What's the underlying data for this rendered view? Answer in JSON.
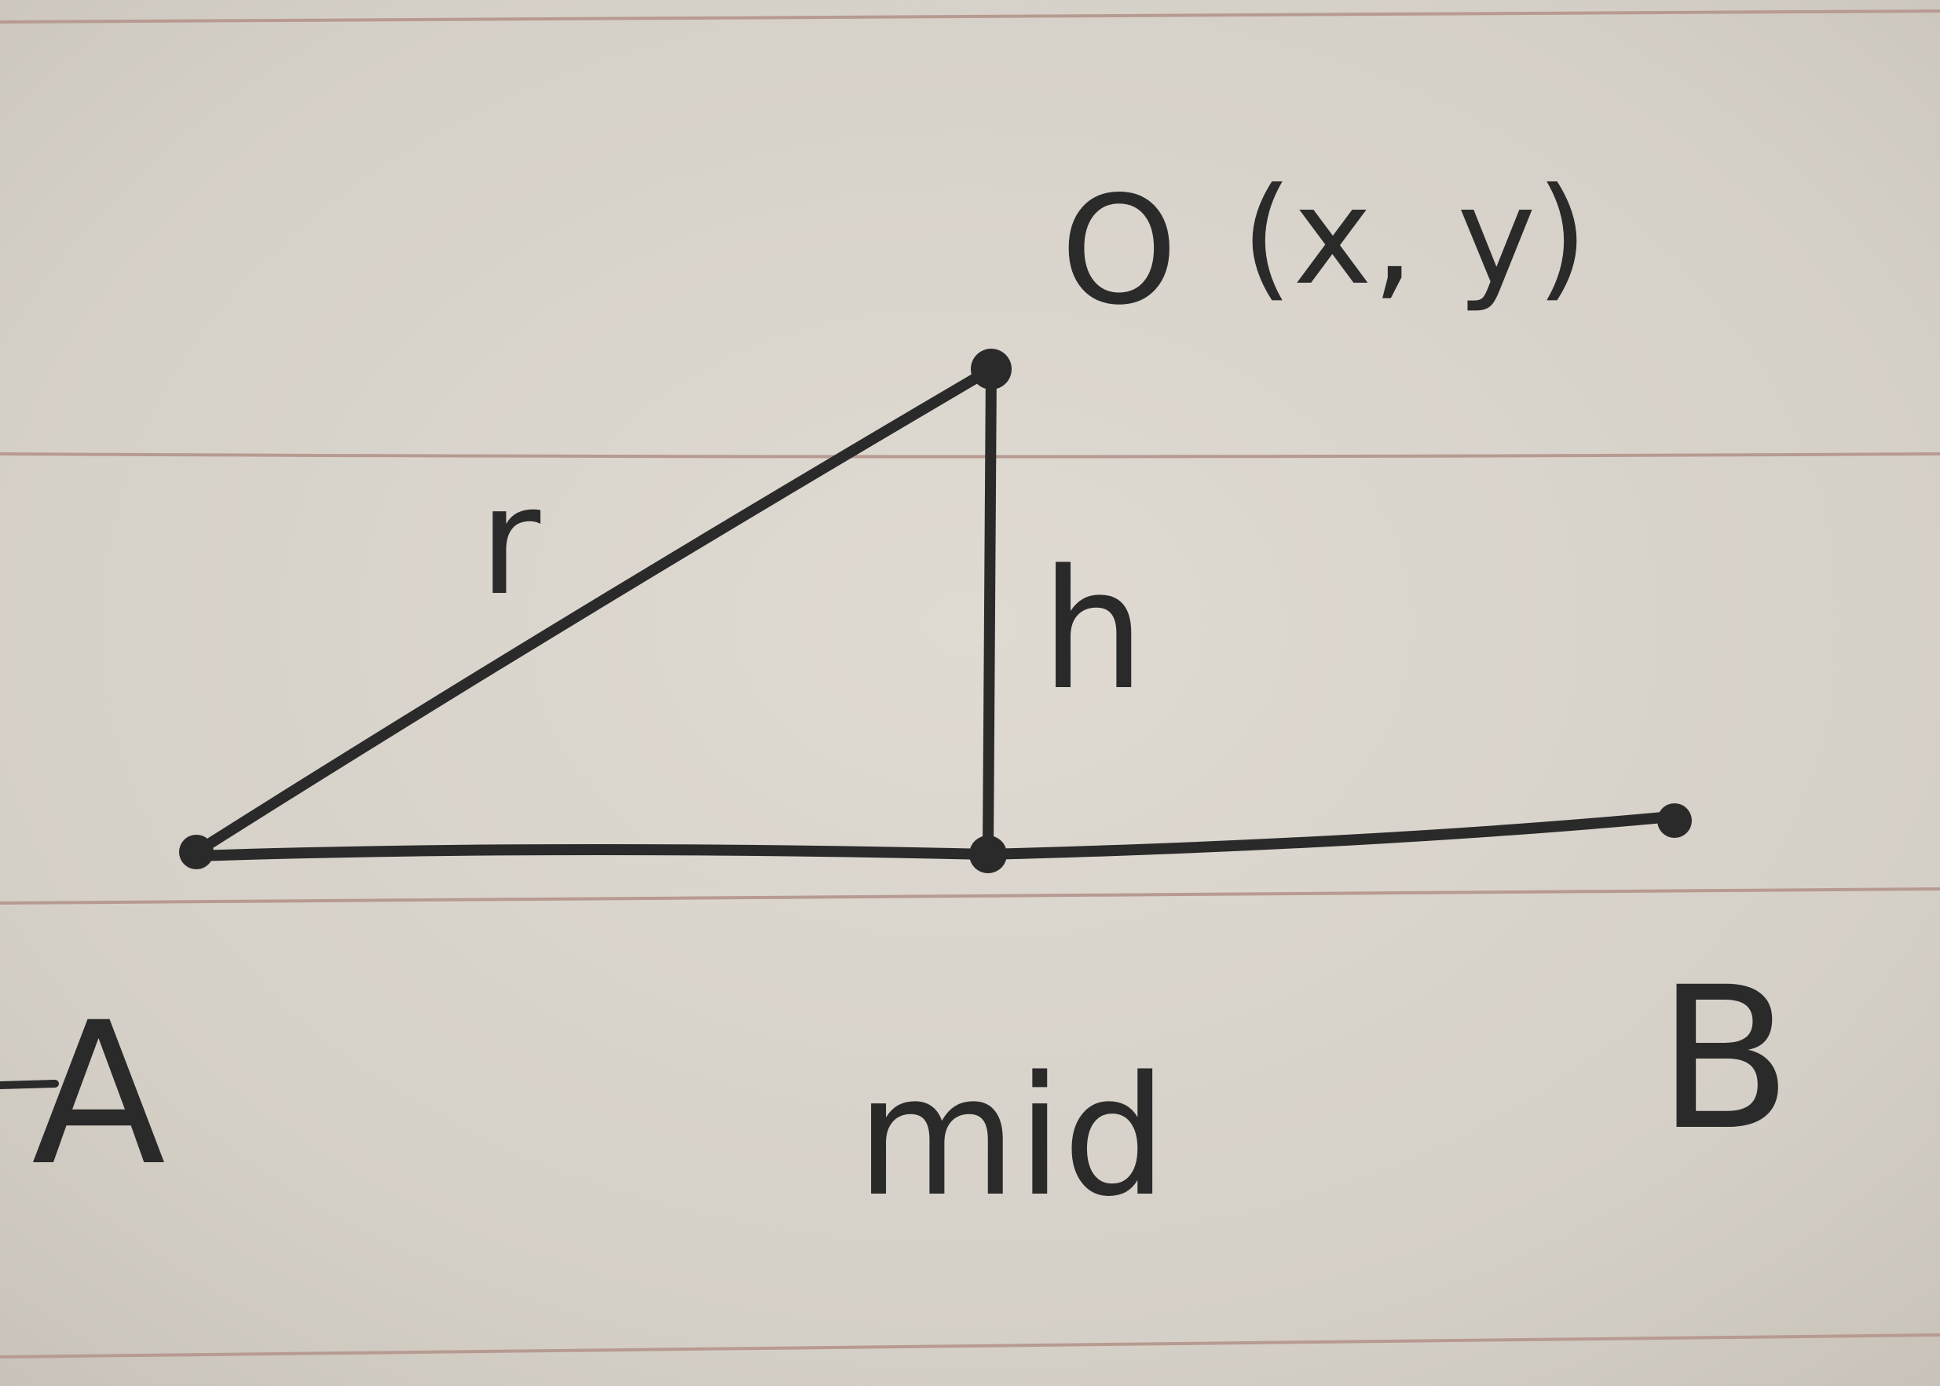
{
  "diagram": {
    "labels": {
      "point_o": "O",
      "coordinates": "(x, y)",
      "side_r": "r",
      "side_h": "h",
      "point_a": "A",
      "point_b": "B",
      "point_mid": "mid"
    },
    "colors": {
      "paper": "#d6d1c8",
      "rule_line": "#b79a91",
      "ink": "#2a2a2a"
    }
  }
}
